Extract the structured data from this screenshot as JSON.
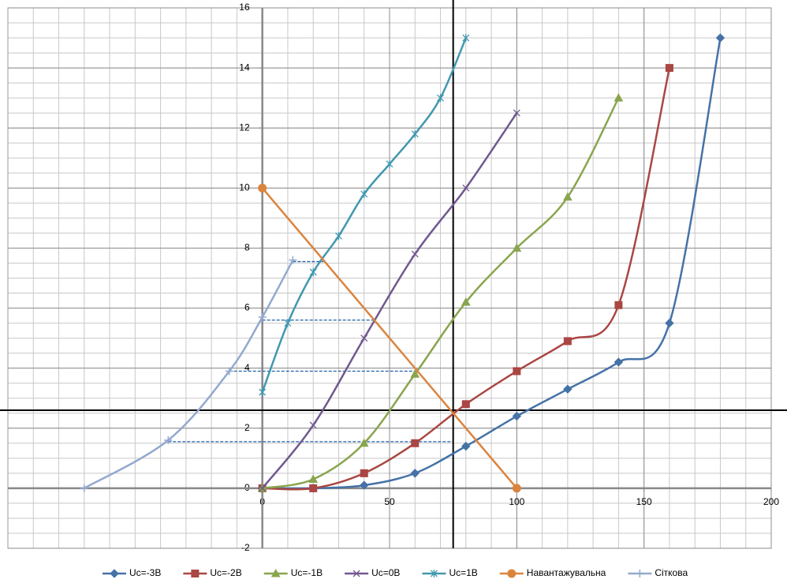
{
  "chart_data": {
    "type": "line",
    "xlim": [
      -100,
      200
    ],
    "xticks": [
      0,
      50,
      100,
      150,
      200
    ],
    "ylim": [
      -2,
      16
    ],
    "yticks": [
      -2,
      0,
      2,
      4,
      6,
      8,
      10,
      12,
      14,
      16
    ],
    "grid": {
      "x_step": 10,
      "y_step": 0.5
    },
    "smooth": true,
    "legend": "bottom",
    "series": [
      {
        "name": "Uc=-3В",
        "color": "#4572a7",
        "marker": "diamond",
        "x": [
          0,
          20,
          40,
          60,
          80,
          100,
          120,
          140,
          160,
          180
        ],
        "values": [
          0,
          0,
          0.1,
          0.5,
          1.4,
          2.4,
          3.3,
          4.2,
          5.5,
          15
        ]
      },
      {
        "name": "Uc=-2В",
        "color": "#aa4643",
        "marker": "square",
        "x": [
          0,
          20,
          40,
          60,
          80,
          100,
          120,
          140,
          160
        ],
        "values": [
          0,
          0,
          0.5,
          1.5,
          2.8,
          3.9,
          4.9,
          6.1,
          14
        ]
      },
      {
        "name": "Uc=-1В",
        "color": "#89a54e",
        "marker": "triangle",
        "x": [
          0,
          20,
          40,
          60,
          80,
          100,
          120,
          140
        ],
        "values": [
          0,
          0.3,
          1.5,
          3.8,
          6.2,
          8,
          9.7,
          13
        ]
      },
      {
        "name": "Uc=0В",
        "color": "#71588f",
        "marker": "cross",
        "x": [
          0,
          20,
          40,
          60,
          80,
          100
        ],
        "values": [
          0,
          2.1,
          5,
          7.8,
          10,
          12.5
        ]
      },
      {
        "name": "Uc=1В",
        "color": "#4198af",
        "marker": "star",
        "x": [
          0,
          10,
          20,
          30,
          40,
          50,
          60,
          70,
          80
        ],
        "values": [
          3.2,
          5.5,
          7.2,
          8.4,
          9.8,
          10.8,
          11.8,
          13,
          15
        ]
      },
      {
        "name": "Навантажувальна",
        "color": "#db843d",
        "marker": "circle",
        "x": [
          0,
          100
        ],
        "values": [
          10,
          0
        ]
      },
      {
        "name": "Сіткова",
        "color": "#93a9cf",
        "marker": "plus",
        "x": [
          -70,
          -37,
          -13,
          0,
          12
        ],
        "values": [
          0,
          1.6,
          3.9,
          5.7,
          7.6
        ]
      }
    ],
    "reference_lines": [
      {
        "axis": "x",
        "value": 75,
        "color": "#000000"
      },
      {
        "axis": "y",
        "value": 2.6,
        "color": "#000000"
      }
    ],
    "dashed_guides": {
      "color": "#1f5fa8",
      "lines": [
        {
          "y": 7.55,
          "x": [
            12,
            24
          ]
        },
        {
          "y": 5.6,
          "x": [
            0,
            44
          ]
        },
        {
          "y": 3.9,
          "x": [
            -13,
            60
          ]
        },
        {
          "y": 1.55,
          "x": [
            -37,
            75
          ]
        }
      ]
    }
  }
}
